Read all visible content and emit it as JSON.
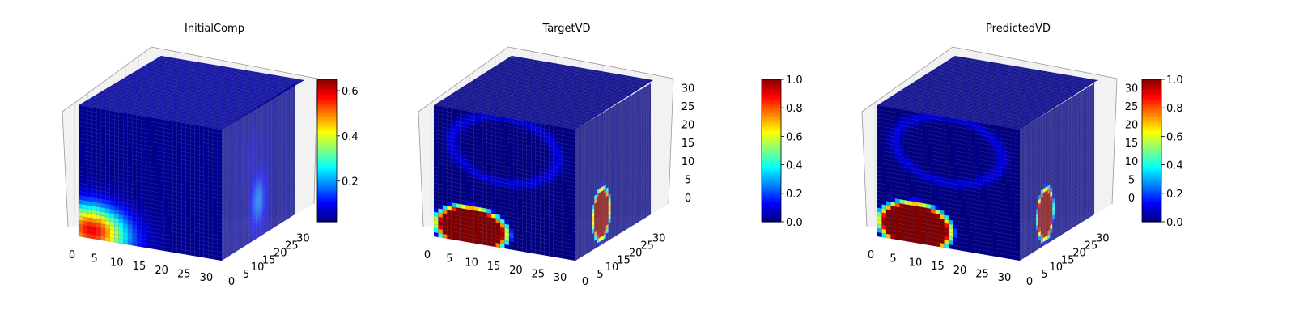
{
  "figure": {
    "background": "#ffffff"
  },
  "chart_data": [
    {
      "type": "heatmap",
      "subtype": "3d-voxel",
      "title": "InitialComp",
      "axes": {
        "x": [
          0,
          32
        ],
        "y": [
          0,
          32
        ],
        "z": [
          0,
          32
        ]
      },
      "ticks": {
        "x": [
          "0",
          "5",
          "10",
          "15",
          "20",
          "25",
          "30"
        ],
        "y": [
          "0",
          "5",
          "10",
          "15",
          "20",
          "25",
          "30"
        ],
        "z": []
      },
      "grid": true,
      "colormap": "jet",
      "value_range": [
        0.02,
        0.65
      ],
      "colorbar": {
        "range": [
          0.02,
          0.65
        ],
        "ticks": [
          "0.2",
          "0.4",
          "0.6"
        ],
        "values": [
          0.2,
          0.4,
          0.6
        ]
      },
      "features": [
        {
          "face": "front",
          "u": 3,
          "v": 2,
          "ru": 9,
          "rv": 7,
          "peak": 0.58
        },
        {
          "face": "side",
          "u": 16,
          "v": 9,
          "ru": 4,
          "rv": 8,
          "peak": 0.18
        },
        {
          "face": "side",
          "u": 14,
          "v": 20,
          "ru": 7,
          "rv": 8,
          "peak": 0.06
        }
      ],
      "base": 0.03
    },
    {
      "type": "heatmap",
      "subtype": "3d-voxel",
      "title": "TargetVD",
      "axes": {
        "x": [
          0,
          32
        ],
        "y": [
          0,
          32
        ],
        "z": [
          0,
          32
        ]
      },
      "ticks": {
        "x": [
          "0",
          "5",
          "10",
          "15",
          "20",
          "25",
          "30"
        ],
        "y": [
          "0",
          "5",
          "10",
          "15",
          "20",
          "25",
          "30"
        ],
        "z": [
          "0",
          "5",
          "10",
          "15",
          "20",
          "25",
          "30"
        ]
      },
      "grid": true,
      "colormap": "jet",
      "value_range": [
        0.0,
        1.0
      ],
      "colorbar": {
        "range": [
          0.0,
          1.0
        ],
        "ticks": [
          "0.0",
          "0.2",
          "0.4",
          "0.6",
          "0.8",
          "1.0"
        ],
        "values": [
          0.0,
          0.2,
          0.4,
          0.6,
          0.8,
          1.0
        ]
      },
      "features": [
        {
          "face": "front",
          "u": 8.5,
          "v": 3.5,
          "ru": 8.5,
          "rv": 5.5,
          "peak": 1.0,
          "sharp": true
        },
        {
          "face": "side",
          "u": 11,
          "v": 7.5,
          "ru": 3.8,
          "rv": 6.5,
          "peak": 1.0,
          "sharp": true
        },
        {
          "face": "front",
          "u": 16,
          "v": 24,
          "ru": 12,
          "rv": 8,
          "peak": 0.1,
          "ring": true
        }
      ],
      "base": 0.0
    },
    {
      "type": "heatmap",
      "subtype": "3d-voxel",
      "title": "PredictedVD",
      "axes": {
        "x": [
          0,
          32
        ],
        "y": [
          0,
          32
        ],
        "z": [
          0,
          32
        ]
      },
      "ticks": {
        "x": [
          "0",
          "5",
          "10",
          "15",
          "20",
          "25",
          "30"
        ],
        "y": [
          "0",
          "5",
          "10",
          "15",
          "20",
          "25",
          "30"
        ],
        "z": [
          "0",
          "5",
          "10",
          "15",
          "20",
          "25",
          "30"
        ]
      },
      "grid": true,
      "colormap": "jet",
      "value_range": [
        0.0,
        1.0
      ],
      "colorbar": {
        "range": [
          0.0,
          1.0
        ],
        "ticks": [
          "0.0",
          "0.2",
          "0.4",
          "0.6",
          "0.8",
          "1.0"
        ],
        "values": [
          0.0,
          0.2,
          0.4,
          0.6,
          0.8,
          1.0
        ]
      },
      "features": [
        {
          "face": "front",
          "u": 8.5,
          "v": 4,
          "ru": 8.5,
          "rv": 6,
          "peak": 1.0,
          "sharp": true
        },
        {
          "face": "side",
          "u": 11,
          "v": 7.5,
          "ru": 3.5,
          "rv": 6.5,
          "peak": 1.0,
          "sharp": true
        },
        {
          "face": "front",
          "u": 16,
          "v": 24,
          "ru": 12,
          "rv": 8,
          "peak": 0.1,
          "ring": true
        }
      ],
      "base": 0.0
    }
  ]
}
